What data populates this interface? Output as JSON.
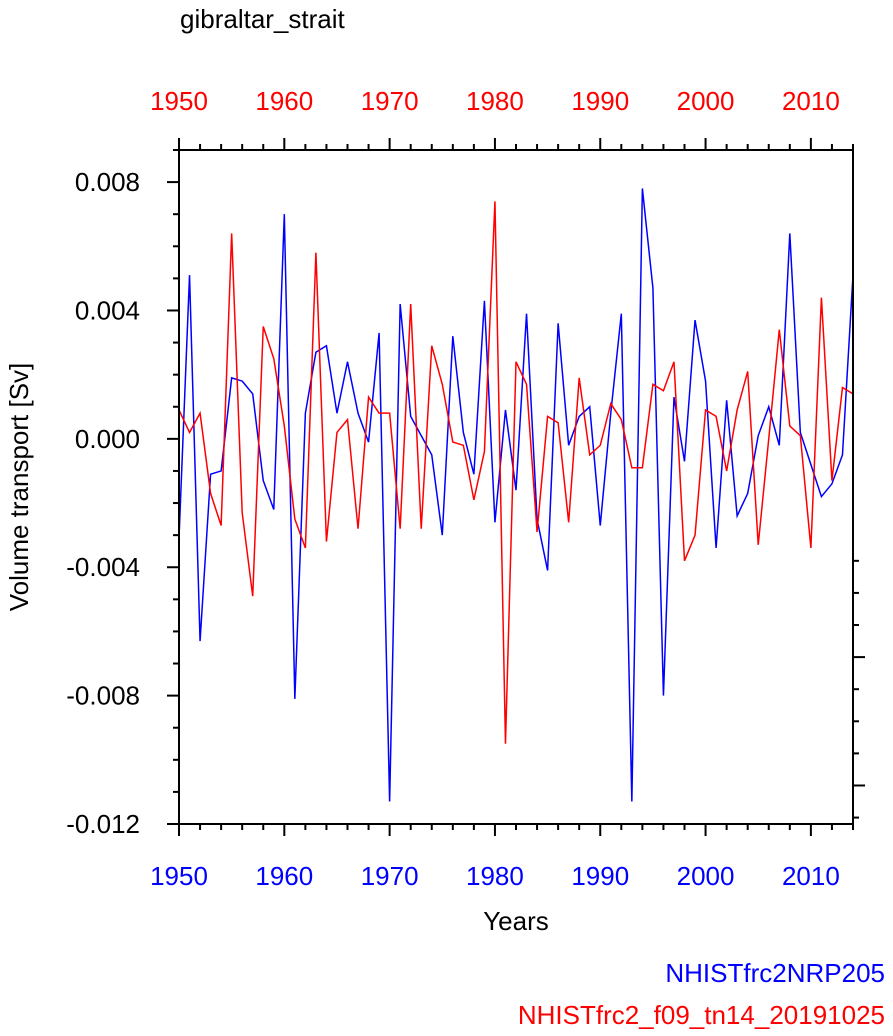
{
  "chart_data": {
    "type": "line",
    "title": "gibraltar_strait",
    "xlabel": "Years",
    "ylabel": "Volume transport [Sv]",
    "xlim": [
      1950,
      2014
    ],
    "ylim": [
      -0.012,
      0.009
    ],
    "bottom_xticks": [
      1950,
      1960,
      1970,
      1980,
      1990,
      2000,
      2010
    ],
    "bottom_xtick_labels": [
      "1950",
      "1960",
      "1970",
      "1980",
      "1990",
      "2000",
      "2010"
    ],
    "top_xticks": [
      1950,
      1960,
      1970,
      1980,
      1990,
      2000,
      2010
    ],
    "top_xtick_labels": [
      "1950",
      "1960",
      "1970",
      "1980",
      "1990",
      "2000",
      "2010"
    ],
    "yticks": [
      0.008,
      0.004,
      0.0,
      -0.004,
      -0.008,
      -0.012
    ],
    "ytick_labels": [
      "0.008",
      "0.004",
      "0.000",
      "-0.004",
      "-0.008",
      "-0.012"
    ],
    "x": [
      1950,
      1951,
      1952,
      1953,
      1954,
      1955,
      1956,
      1957,
      1958,
      1959,
      1960,
      1961,
      1962,
      1963,
      1964,
      1965,
      1966,
      1967,
      1968,
      1969,
      1970,
      1971,
      1972,
      1973,
      1974,
      1975,
      1976,
      1977,
      1978,
      1979,
      1980,
      1981,
      1982,
      1983,
      1984,
      1985,
      1986,
      1987,
      1988,
      1989,
      1990,
      1991,
      1992,
      1993,
      1994,
      1995,
      1996,
      1997,
      1998,
      1999,
      2000,
      2001,
      2002,
      2003,
      2004,
      2005,
      2006,
      2007,
      2008,
      2009,
      2010,
      2011,
      2012,
      2013,
      2014
    ],
    "series": [
      {
        "name": "NHISTfrc2NRP205",
        "color": "#0000ff",
        "values": [
          -0.0031,
          0.0051,
          -0.0063,
          -0.0011,
          -0.001,
          0.0019,
          0.0018,
          0.0014,
          -0.0013,
          -0.0022,
          0.007,
          -0.0081,
          0.0008,
          0.0027,
          0.0029,
          0.0008,
          0.0024,
          0.0008,
          -0.0001,
          0.0033,
          -0.0113,
          0.0042,
          0.0007,
          0.0001,
          -0.0005,
          -0.003,
          0.0032,
          0.0002,
          -0.0011,
          0.0043,
          -0.0026,
          0.0009,
          -0.0016,
          0.0039,
          -0.0025,
          -0.0041,
          0.0036,
          -0.0002,
          0.0007,
          0.001,
          -0.0027,
          0.0008,
          0.0039,
          -0.0113,
          0.0078,
          0.0047,
          -0.008,
          0.0013,
          -0.0007,
          0.0037,
          0.0018,
          -0.0034,
          0.0012,
          -0.0024,
          -0.0017,
          0.0001,
          0.001,
          -0.0002,
          0.0064,
          0.0002,
          -0.0008,
          -0.0018,
          -0.0014,
          -0.0005,
          0.0051
        ]
      },
      {
        "name": "NHISTfrc2_f09_tn14_20191025",
        "color": "#ff0000",
        "values": [
          0.0009,
          0.0002,
          0.0008,
          -0.0017,
          -0.0027,
          0.0064,
          -0.0023,
          -0.0049,
          0.0035,
          0.0025,
          0.0004,
          -0.0025,
          -0.0034,
          0.0058,
          -0.0032,
          0.0002,
          0.0006,
          -0.0028,
          0.0013,
          0.0008,
          0.0008,
          -0.0028,
          0.0042,
          -0.0028,
          0.0029,
          0.0017,
          -0.0001,
          -0.0002,
          -0.0019,
          -0.0004,
          0.0074,
          -0.0095,
          0.0024,
          0.0017,
          -0.0029,
          0.0007,
          0.0005,
          -0.0026,
          0.0019,
          -0.0005,
          -0.0002,
          0.0011,
          0.0006,
          -0.0009,
          -0.0009,
          0.0017,
          0.0015,
          0.0024,
          -0.0038,
          -0.003,
          0.0009,
          0.0007,
          -0.001,
          0.0009,
          0.0021,
          -0.0033,
          0.0,
          0.0034,
          0.0004,
          0.0001,
          -0.0034,
          0.0044,
          -0.0013,
          0.0016,
          0.0014
        ]
      }
    ],
    "legend": [
      "NHISTfrc2NRP205",
      "NHISTfrc2_f09_tn14_20191025"
    ],
    "legend_position": "bottom-right",
    "grid": false
  },
  "colors": {
    "series_a": "#0000ff",
    "series_b": "#ff0000",
    "axes": "#000000"
  }
}
